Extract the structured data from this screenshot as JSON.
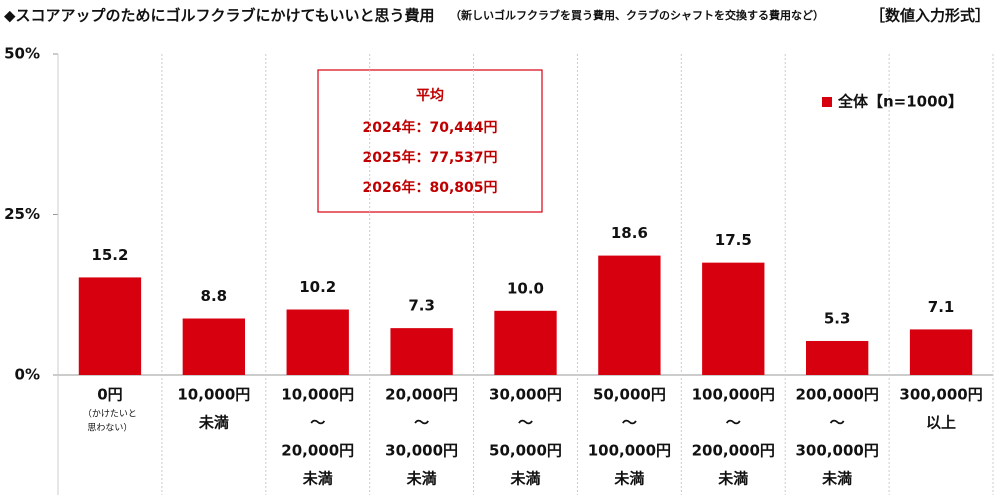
{
  "chart_data": {
    "type": "bar",
    "title": "◆スコアアップのためにゴルフクラブにかけてもいいと思う費用",
    "subtitle": "（新しいゴルフクラブを買う費用、クラブのシャフトを交換する費用など）",
    "format_note": "［数値入力形式］",
    "categories": [
      [
        "0円"
      ],
      [
        "10,000円",
        "未満"
      ],
      [
        "10,000円",
        "～",
        "20,000円",
        "未満"
      ],
      [
        "20,000円",
        "～",
        "30,000円",
        "未満"
      ],
      [
        "30,000円",
        "～",
        "50,000円",
        "未満"
      ],
      [
        "50,000円",
        "～",
        "100,000円",
        "未満"
      ],
      [
        "100,000円",
        "～",
        "200,000円",
        "未満"
      ],
      [
        "200,000円",
        "～",
        "300,000円",
        "未満"
      ],
      [
        "300,000円",
        "以上"
      ]
    ],
    "category_note": [
      "（かけたいと",
      "思わない）"
    ],
    "series": [
      {
        "name": "全体【n=1000】",
        "color": "#d7000f",
        "values": [
          15.2,
          8.8,
          10.2,
          7.3,
          10.0,
          18.6,
          17.5,
          5.3,
          7.1
        ],
        "value_labels": [
          "15.2",
          "8.8",
          "10.2",
          "7.3",
          "10.0",
          "18.6",
          "17.5",
          "5.3",
          "7.1"
        ]
      }
    ],
    "ylim": [
      0,
      50
    ],
    "yticks": [
      {
        "value": 0,
        "label": "0%"
      },
      {
        "value": 25,
        "label": "25%"
      },
      {
        "value": 50,
        "label": "50%"
      }
    ],
    "grid": false,
    "legend": "top-right",
    "annotation": {
      "title": "平均",
      "lines": [
        "2024年：70,444円",
        "2025年：77,537円",
        "2026年：80,805円"
      ]
    }
  }
}
